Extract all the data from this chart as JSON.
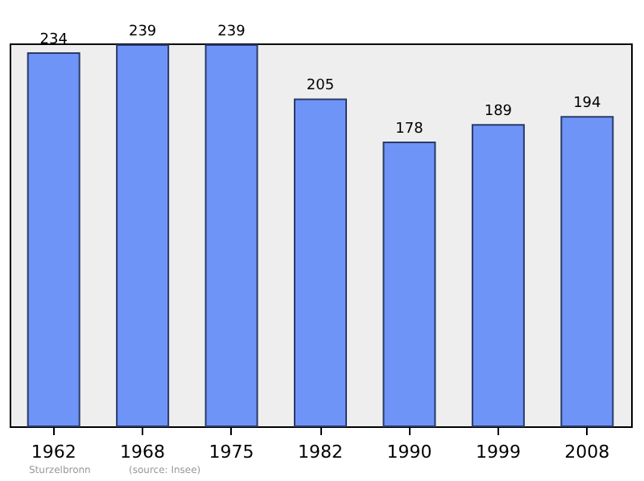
{
  "chart_data": {
    "type": "bar",
    "categories": [
      "1962",
      "1968",
      "1975",
      "1982",
      "1990",
      "1999",
      "2008"
    ],
    "values": [
      234,
      239,
      239,
      205,
      178,
      189,
      194
    ],
    "color": "#6f94f7",
    "data_labels": true,
    "grid": false,
    "annotations": [
      "Sturzelbronn",
      "(source: Insee)"
    ]
  }
}
